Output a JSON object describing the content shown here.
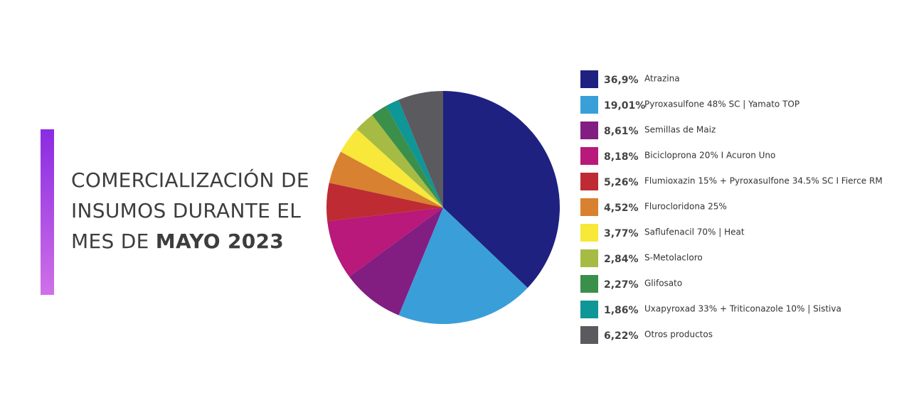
{
  "chart_data": {
    "type": "pie",
    "title": [
      "COMERCIALIZACIÓN DE",
      "INSUMOS DURANTE EL",
      "MES DE",
      "MAYO 2023"
    ],
    "categories": [
      "Atrazina",
      "Pyroxasulfone 48% SC | Yamato TOP",
      "Semillas de Maiz",
      "Bicicloprona 20% I Acuron Uno",
      "Flumioxazin 15% + Pyroxasulfone 34.5% SC I Fierce RM",
      "Flurocloridona 25%",
      "Saflufenacil 70% | Heat",
      "S-Metolacloro",
      "Glifosato",
      "Uxapyroxad 33% + Triticonazole 10% | Sistiva",
      "Otros productos"
    ],
    "values": [
      36.9,
      19.01,
      8.61,
      8.18,
      5.26,
      4.52,
      3.77,
      2.84,
      2.27,
      1.86,
      6.22
    ],
    "value_labels": [
      "36,9%",
      "19,01%",
      "8,61%",
      "8,18%",
      "5,26%",
      "4,52%",
      "3,77%",
      "2,84%",
      "2,27%",
      "1,86%",
      "6,22%"
    ],
    "colors": [
      "#1e2180",
      "#3a9fd8",
      "#821d82",
      "#b8197a",
      "#be2b33",
      "#d88130",
      "#f7e83a",
      "#a6bb44",
      "#3a8f4a",
      "#0f9696",
      "#5a5a5f"
    ]
  }
}
